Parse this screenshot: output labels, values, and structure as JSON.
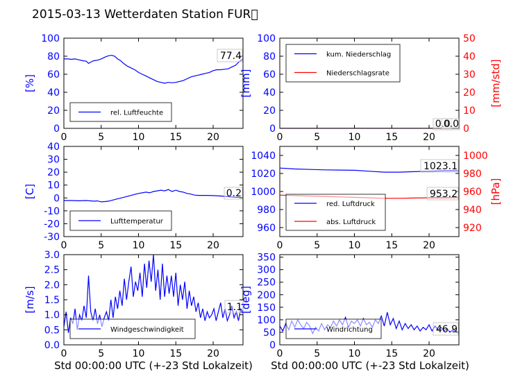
{
  "figure": {
    "title": "2015-03-13 Wetterdaten Station FUR\u0000",
    "xlabel": "Std 00:00:00 UTC (+-23 Std Lokalzeit)"
  },
  "colors": {
    "line_blue": "#0000ff",
    "line_red": "#ff0000",
    "axis_blue": "#0000ff",
    "axis_red": "#ff0000",
    "text": "#000000"
  },
  "chart_data": [
    {
      "id": "humidity",
      "type": "line",
      "ylabel": "[%]",
      "xlim": [
        0,
        24
      ],
      "xticks": [
        0,
        5,
        10,
        15,
        20
      ],
      "ylim": [
        0,
        100
      ],
      "yticks": [
        0,
        20,
        40,
        60,
        80,
        100
      ],
      "grid": false,
      "legend_placement": "lower-left",
      "series": [
        {
          "name": "rel. Luftfeuchte",
          "axis": "left",
          "color": "#0000ff",
          "x": [
            0,
            0.5,
            1,
            1.5,
            2,
            2.5,
            3,
            3.3,
            3.6,
            4,
            4.5,
            5,
            5.5,
            6,
            6.4,
            6.8,
            7.2,
            7.6,
            8,
            8.5,
            9,
            9.5,
            10,
            10.5,
            11,
            11.5,
            12,
            12.5,
            13,
            13.5,
            14,
            14.5,
            15,
            15.5,
            16,
            16.5,
            17,
            17.5,
            18,
            18.5,
            19,
            19.5,
            20,
            20.5,
            21,
            21.5,
            22,
            22.5,
            23,
            23.5,
            24
          ],
          "y": [
            77,
            77,
            76.5,
            77,
            76,
            75,
            74.5,
            72,
            73.5,
            75,
            75.5,
            77,
            79,
            80.5,
            81,
            80,
            77,
            75,
            72,
            69,
            67,
            65,
            62,
            60,
            58,
            56,
            54,
            52,
            51,
            50,
            51,
            50.5,
            51,
            52,
            53,
            55,
            57,
            58,
            59,
            60,
            61,
            62,
            64,
            65,
            65,
            65.5,
            66,
            68,
            70,
            74,
            77
          ]
        }
      ],
      "annotations": [
        {
          "text": "77.4"
        }
      ]
    },
    {
      "id": "precipitation",
      "type": "line",
      "ylabel": "[mm]",
      "ylabel_right": "[mm/std]",
      "xlim": [
        0,
        24
      ],
      "xticks": [
        0,
        5,
        10,
        15,
        20
      ],
      "ylim": [
        0,
        100
      ],
      "yticks": [
        0,
        20,
        40,
        60,
        80,
        100
      ],
      "ylim_right": [
        0,
        50
      ],
      "yticks_right": [
        0,
        10,
        20,
        30,
        40,
        50
      ],
      "grid": false,
      "legend_placement": "upper-left",
      "series": [
        {
          "name": "kum. Niederschlag",
          "axis": "left",
          "color": "#0000ff",
          "x": [
            0,
            24
          ],
          "y": [
            0,
            0
          ]
        },
        {
          "name": "Niederschlagsrate",
          "axis": "right",
          "color": "#ff0000",
          "x": [
            0,
            24
          ],
          "y": [
            0,
            0
          ]
        }
      ],
      "annotations": [
        {
          "text": "0.0"
        },
        {
          "text": "0.0"
        }
      ]
    },
    {
      "id": "temperature",
      "type": "line",
      "ylabel": "[C]",
      "xlim": [
        0,
        24
      ],
      "xticks": [
        0,
        5,
        10,
        15,
        20
      ],
      "ylim": [
        -30,
        40
      ],
      "yticks": [
        -30,
        -20,
        -10,
        0,
        10,
        20,
        30,
        40
      ],
      "grid": false,
      "legend_placement": "lower-left",
      "series": [
        {
          "name": "Lufttemperatur",
          "axis": "left",
          "color": "#0000ff",
          "x": [
            0,
            1,
            2,
            3,
            4,
            4.5,
            5,
            5.5,
            6,
            7,
            8,
            9,
            10,
            10.5,
            11,
            11.5,
            12,
            12.5,
            13,
            13.5,
            14,
            14.5,
            15,
            15.5,
            16,
            16.5,
            17,
            17.5,
            18,
            19,
            20,
            21,
            22,
            23,
            24
          ],
          "y": [
            -2,
            -2,
            -2.2,
            -2,
            -2.5,
            -2.3,
            -3,
            -2.8,
            -2.5,
            -1,
            0.5,
            2,
            3.5,
            4,
            4.5,
            4,
            5,
            5.5,
            6,
            5.5,
            6.5,
            5,
            6,
            5,
            4.5,
            3.5,
            3,
            2.2,
            2,
            2,
            1.8,
            1.5,
            1,
            0.5,
            0.2
          ]
        }
      ],
      "annotations": [
        {
          "text": "0.2"
        }
      ]
    },
    {
      "id": "pressure",
      "type": "line",
      "ylabel_right": "[hPa]",
      "xlim": [
        0,
        24
      ],
      "xticks": [
        0,
        5,
        10,
        15,
        20
      ],
      "ylim": [
        950,
        1050
      ],
      "yticks": [
        960,
        980,
        1000,
        1020,
        1040
      ],
      "ylim_right": [
        910,
        1010
      ],
      "yticks_right": [
        920,
        940,
        960,
        980,
        1000
      ],
      "grid": false,
      "legend_placement": "lower-left",
      "series": [
        {
          "name": "red. Luftdruck",
          "axis": "left",
          "color": "#0000ff",
          "x": [
            0,
            2,
            4,
            6,
            8,
            10,
            12,
            14,
            16,
            18,
            20,
            22,
            24
          ],
          "y": [
            1026,
            1025,
            1024.5,
            1024,
            1023.8,
            1023.5,
            1022.5,
            1021.5,
            1021.5,
            1022,
            1022.5,
            1023,
            1023.1
          ]
        },
        {
          "name": "abs. Luftdruck",
          "axis": "right",
          "color": "#ff0000",
          "x": [
            0,
            2,
            4,
            6,
            8,
            10,
            12,
            14,
            16,
            18,
            20,
            22,
            24
          ],
          "y": [
            956,
            955.5,
            955,
            954.5,
            954,
            953.5,
            953,
            952.5,
            952.5,
            952.8,
            953,
            953.1,
            953.2
          ]
        }
      ],
      "annotations": [
        {
          "text": "1023.1"
        },
        {
          "text": "953.2"
        }
      ]
    },
    {
      "id": "windspeed",
      "type": "line",
      "ylabel": "[m/s]",
      "xlim": [
        0,
        24
      ],
      "xticks": [
        0,
        5,
        10,
        15,
        20
      ],
      "ylim": [
        0,
        3
      ],
      "yticks": [
        0.0,
        0.5,
        1.0,
        1.5,
        2.0,
        2.5,
        3.0
      ],
      "grid": false,
      "legend_placement": "lower-center",
      "series": [
        {
          "name": "Windgeschwindigkeit",
          "axis": "left",
          "color": "#0000ff",
          "x": [
            0,
            0.3,
            0.6,
            0.9,
            1.2,
            1.5,
            1.8,
            2.1,
            2.4,
            2.7,
            3,
            3.3,
            3.6,
            3.9,
            4.2,
            4.5,
            4.8,
            5.1,
            5.4,
            5.7,
            6,
            6.3,
            6.6,
            6.9,
            7.2,
            7.5,
            7.8,
            8.1,
            8.4,
            8.7,
            9,
            9.3,
            9.6,
            9.9,
            10.2,
            10.5,
            10.8,
            11.1,
            11.4,
            11.7,
            12,
            12.3,
            12.6,
            12.9,
            13.2,
            13.5,
            13.8,
            14.1,
            14.4,
            14.7,
            15,
            15.3,
            15.6,
            15.9,
            16.2,
            16.5,
            16.8,
            17.1,
            17.4,
            17.7,
            18,
            18.3,
            18.6,
            18.9,
            19.2,
            19.5,
            19.8,
            20.1,
            20.4,
            20.7,
            21,
            21.3,
            21.6,
            21.9,
            22.2,
            22.5,
            22.8,
            23.1,
            23.4,
            23.7,
            24
          ],
          "y": [
            0.6,
            1.1,
            0.4,
            0.9,
            0.7,
            1.2,
            0.5,
            1.0,
            0.8,
            1.3,
            0.9,
            2.3,
            1.1,
            0.8,
            1.2,
            0.7,
            1.0,
            0.6,
            0.9,
            1.1,
            0.8,
            1.5,
            0.9,
            1.6,
            1.2,
            1.8,
            1.3,
            2.2,
            1.5,
            2.1,
            2.6,
            1.6,
            2.1,
            1.8,
            2.4,
            1.6,
            2.7,
            1.9,
            2.8,
            2.1,
            3.0,
            1.8,
            2.5,
            1.5,
            2.7,
            1.6,
            2.3,
            1.7,
            2.3,
            1.6,
            2.4,
            1.3,
            2.0,
            1.5,
            2.1,
            1.2,
            1.8,
            1.3,
            1.6,
            1.1,
            1.4,
            0.9,
            1.2,
            0.8,
            1.1,
            0.9,
            1.0,
            1.2,
            0.8,
            1.1,
            1.4,
            0.9,
            1.2,
            0.8,
            1.0,
            1.3,
            0.9,
            1.1,
            0.8,
            1.2,
            1.1
          ]
        }
      ],
      "annotations": [
        {
          "text": "1.1"
        }
      ]
    },
    {
      "id": "winddirection",
      "type": "line",
      "ylabel": "[deg]",
      "xlim": [
        0,
        24
      ],
      "xticks": [
        0,
        5,
        10,
        15,
        20
      ],
      "ylim": [
        0,
        360
      ],
      "yticks": [
        0,
        50,
        100,
        150,
        200,
        250,
        300,
        350
      ],
      "grid": false,
      "legend_placement": "lower-left",
      "series": [
        {
          "name": "Windrichtung",
          "axis": "left",
          "color": "#0000ff",
          "x": [
            0,
            0.4,
            0.8,
            1.2,
            1.6,
            2,
            2.4,
            2.8,
            3.2,
            3.6,
            4,
            4.4,
            4.8,
            5.2,
            5.6,
            6,
            6.4,
            6.8,
            7.2,
            7.6,
            8,
            8.4,
            8.8,
            9.2,
            9.6,
            10,
            10.4,
            10.8,
            11.2,
            11.6,
            12,
            12.4,
            12.8,
            13.2,
            13.6,
            14,
            14.4,
            14.8,
            15.2,
            15.6,
            16,
            16.4,
            16.8,
            17.2,
            17.6,
            18,
            18.4,
            18.8,
            19.2,
            19.6,
            20,
            20.4,
            20.8,
            21.2,
            21.6,
            22,
            22.4,
            22.8,
            23.2,
            23.6,
            24
          ],
          "y": [
            75,
            55,
            85,
            60,
            95,
            70,
            100,
            80,
            65,
            90,
            75,
            45,
            70,
            55,
            85,
            60,
            80,
            70,
            95,
            75,
            100,
            80,
            110,
            70,
            95,
            85,
            100,
            75,
            105,
            80,
            90,
            70,
            100,
            85,
            115,
            75,
            130,
            80,
            105,
            65,
            95,
            60,
            85,
            65,
            80,
            60,
            75,
            55,
            70,
            60,
            80,
            55,
            75,
            60,
            70,
            55,
            65,
            50,
            60,
            55,
            47
          ]
        }
      ],
      "annotations": [
        {
          "text": "46.9"
        }
      ]
    }
  ]
}
